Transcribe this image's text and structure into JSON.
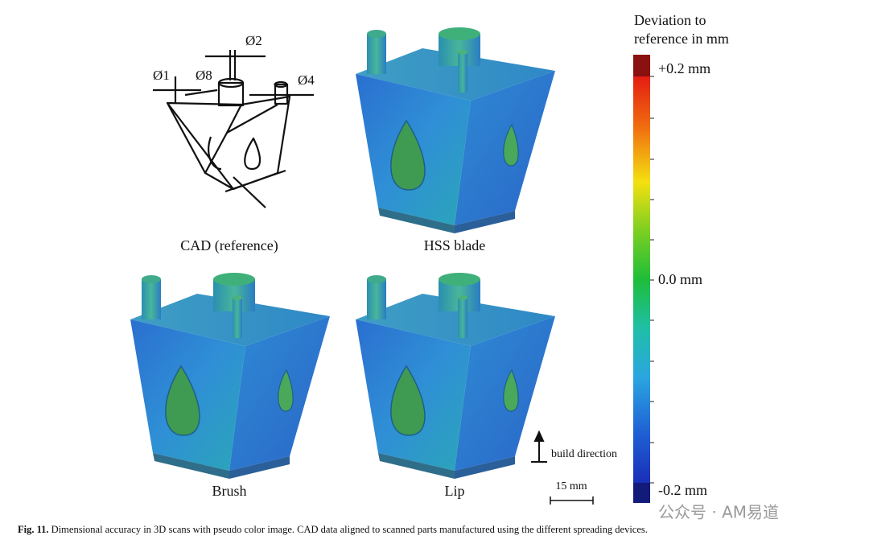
{
  "figure": {
    "cad_dimensions": [
      "Ø1",
      "Ø8",
      "Ø2",
      "Ø4"
    ],
    "panels": [
      "CAD (reference)",
      "HSS blade",
      "Brush",
      "Lip"
    ],
    "colorbar": {
      "title": [
        "Deviation to",
        "reference in mm"
      ],
      "labels": [
        "+0.2 mm",
        "0.0 mm",
        "-0.2 mm"
      ]
    },
    "build_direction": "build direction",
    "scale_bar": "15 mm"
  },
  "caption": {
    "label": "Fig. 11.",
    "text": "Dimensional accuracy in 3D scans with pseudo color image. CAD data aligned to scanned parts manufactured using the different spreading devices."
  },
  "watermark": "公众号 · AM易道"
}
